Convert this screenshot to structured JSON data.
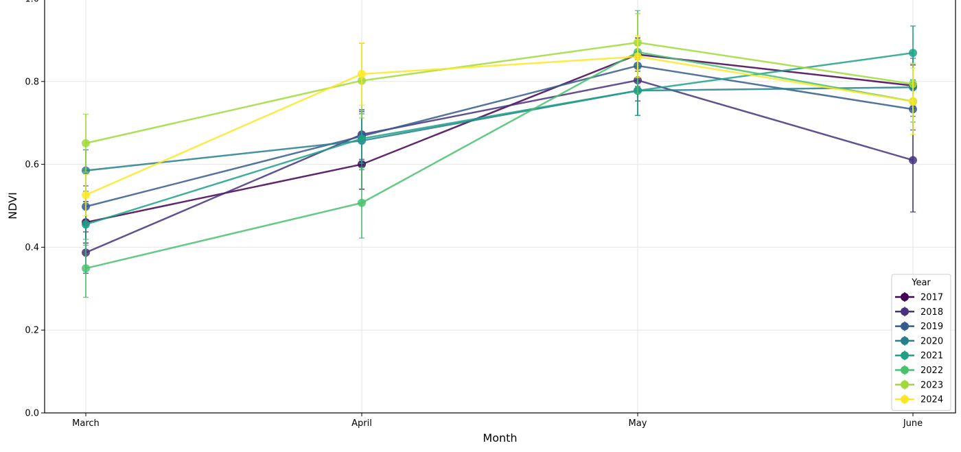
{
  "chart_data": {
    "type": "line",
    "xlabel": "Month",
    "ylabel": "NDVI",
    "categories": [
      "March",
      "April",
      "May",
      "June"
    ],
    "ylim": [
      0.0,
      1.0
    ],
    "yticks": [
      "0.0",
      "0.2",
      "0.4",
      "0.6",
      "0.8",
      "1.0"
    ],
    "grid": true,
    "legend": {
      "title": "Year",
      "placement": "lower-right"
    },
    "series": [
      {
        "name": "2017",
        "color": "#440154",
        "values": [
          0.46,
          0.6,
          0.865,
          0.79
        ],
        "errors": [
          0.05,
          0.06,
          0.04,
          0.05
        ]
      },
      {
        "name": "2018",
        "color": "#46327e",
        "values": [
          0.387,
          0.672,
          0.803,
          0.61
        ],
        "errors": [
          0.05,
          0.06,
          0.05,
          0.125
        ]
      },
      {
        "name": "2019",
        "color": "#365c8d",
        "values": [
          0.498,
          0.668,
          0.838,
          0.733
        ],
        "errors": [
          0.05,
          0.06,
          0.05,
          0.05
        ]
      },
      {
        "name": "2020",
        "color": "#277f8e",
        "values": [
          0.585,
          0.657,
          0.778,
          0.786
        ],
        "errors": [
          0.05,
          0.07,
          0.06,
          0.07
        ]
      },
      {
        "name": "2021",
        "color": "#1fa187",
        "values": [
          0.455,
          0.662,
          0.778,
          0.869
        ],
        "errors": [
          0.05,
          0.06,
          0.06,
          0.065
        ]
      },
      {
        "name": "2022",
        "color": "#4ac16d",
        "values": [
          0.349,
          0.507,
          0.871,
          0.752
        ],
        "errors": [
          0.07,
          0.085,
          0.1,
          0.05
        ]
      },
      {
        "name": "2023",
        "color": "#a0da39",
        "values": [
          0.651,
          0.802,
          0.894,
          0.794
        ],
        "errors": [
          0.07,
          0.09,
          0.07,
          0.05
        ]
      },
      {
        "name": "2024",
        "color": "#fde725",
        "values": [
          0.526,
          0.818,
          0.86,
          0.752
        ],
        "errors": [
          0.05,
          0.075,
          0.05,
          0.08
        ]
      }
    ]
  }
}
